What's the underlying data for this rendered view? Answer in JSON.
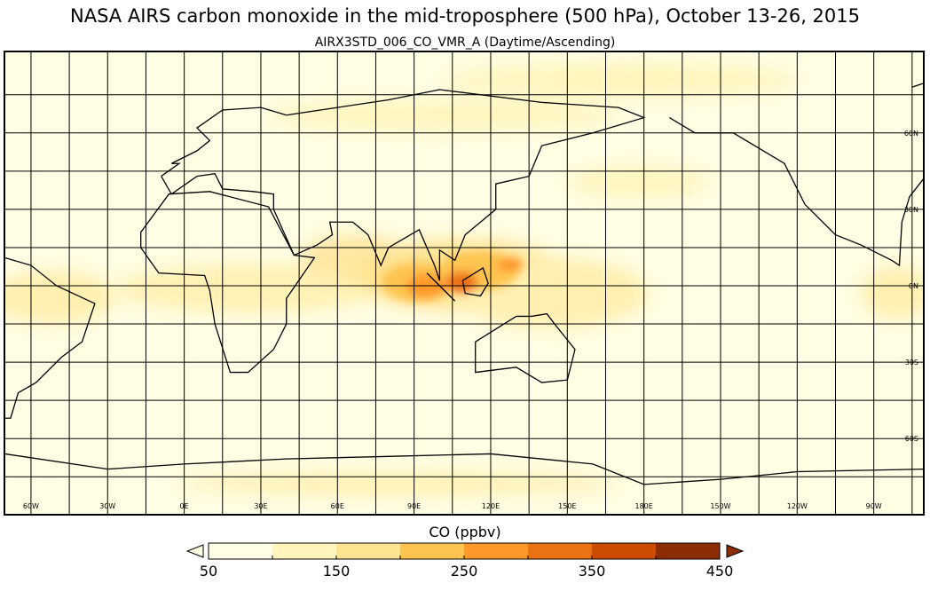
{
  "title": "NASA AIRS carbon monoxide in the mid-troposphere (500 hPa), October 13-26, 2015",
  "subtitle": "AIRX3STD_006_CO_VMR_A (Daytime/Ascending)",
  "map": {
    "lon_labels": [
      {
        "lon": -60,
        "text": "60W"
      },
      {
        "lon": -30,
        "text": "30W"
      },
      {
        "lon": 0,
        "text": "0E"
      },
      {
        "lon": 30,
        "text": "30E"
      },
      {
        "lon": 60,
        "text": "60E"
      },
      {
        "lon": 90,
        "text": "90E"
      },
      {
        "lon": 120,
        "text": "120E"
      },
      {
        "lon": 150,
        "text": "150E"
      },
      {
        "lon": 180,
        "text": "180E"
      },
      {
        "lon": 210,
        "text": "150W"
      },
      {
        "lon": 240,
        "text": "120W"
      },
      {
        "lon": 270,
        "text": "90W"
      }
    ],
    "lat_labels": [
      {
        "lat": 60,
        "text": "60N"
      },
      {
        "lat": 30,
        "text": "30N"
      },
      {
        "lat": 0,
        "text": "0N"
      },
      {
        "lat": -30,
        "text": "30S"
      },
      {
        "lat": -60,
        "text": "60S"
      }
    ],
    "grid_step_deg": 15
  },
  "colorbar": {
    "title": "CO (ppbv)",
    "bounds": [
      50,
      100,
      150,
      200,
      250,
      300,
      350,
      400,
      450
    ],
    "colors": [
      "#fffde4",
      "#fff5bd",
      "#fee391",
      "#fec44f",
      "#fe9929",
      "#ec7014",
      "#cc4c02",
      "#8c2d04"
    ],
    "under_color": "#fffde4",
    "over_color": "#8c2d04",
    "tick_labels": [
      "50",
      "150",
      "250",
      "350",
      "450"
    ]
  }
}
